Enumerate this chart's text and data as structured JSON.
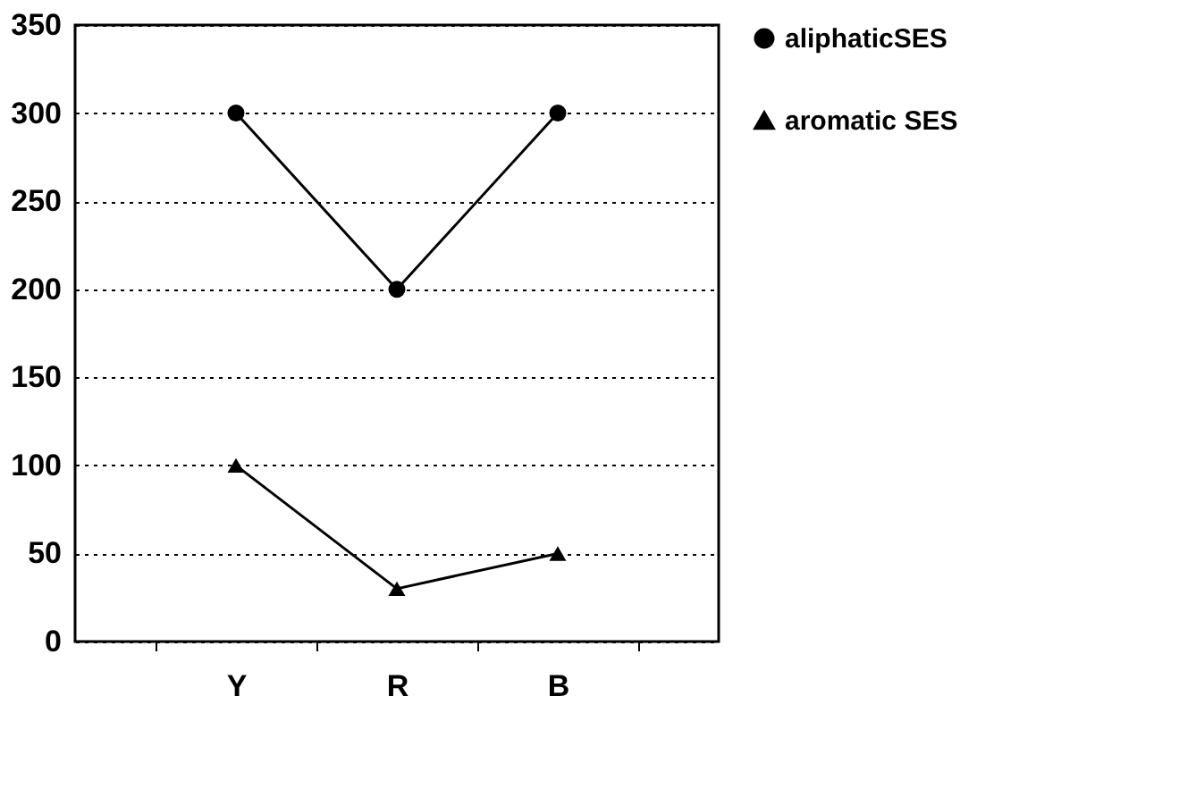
{
  "chart_data": {
    "type": "line",
    "categories": [
      "Y",
      "R",
      "B"
    ],
    "series": [
      {
        "name": "aliphaticSES",
        "color": "#000000",
        "marker": "circle",
        "values": [
          300,
          200,
          300
        ]
      },
      {
        "name": "aromatic SES",
        "color": "#000000",
        "marker": "triangle",
        "values": [
          100,
          30,
          50
        ]
      }
    ],
    "ylim": [
      0,
      350
    ],
    "yticks": [
      0,
      50,
      100,
      150,
      200,
      250,
      300,
      350
    ],
    "grid": "y",
    "legend": "right",
    "line_style": "solid"
  }
}
